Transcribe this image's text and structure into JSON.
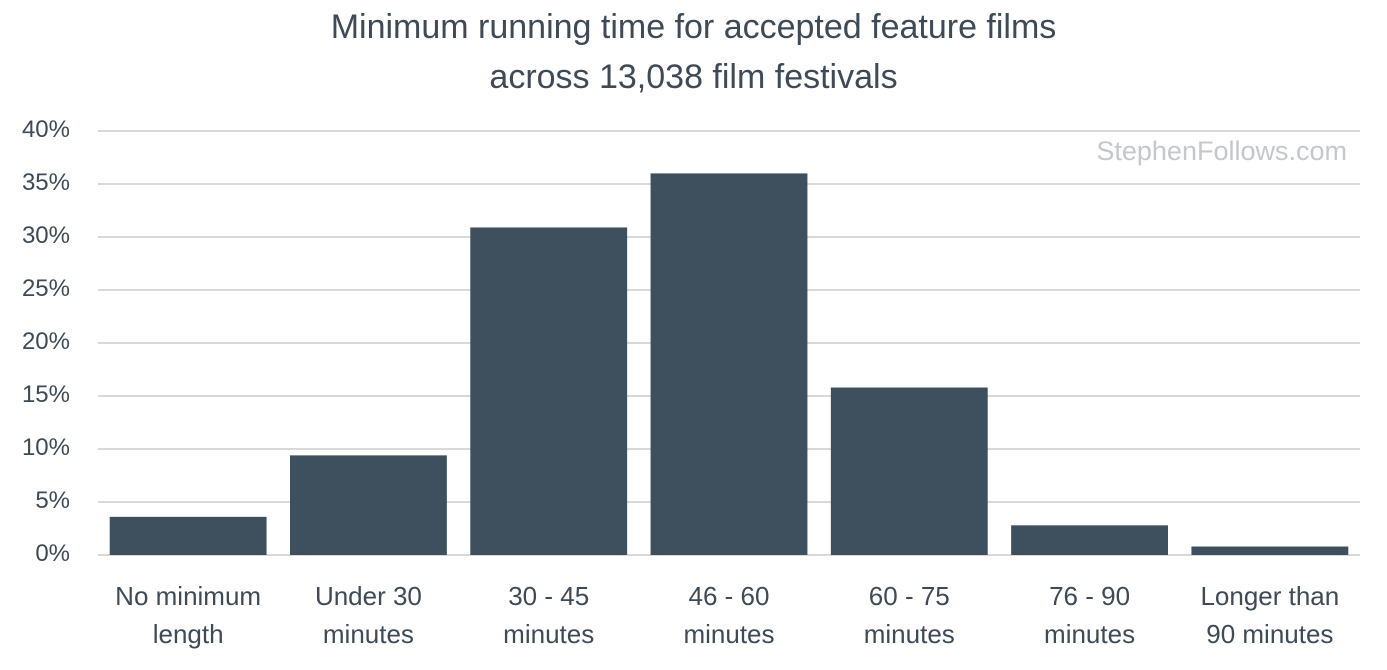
{
  "chart_data": {
    "type": "bar",
    "title": "Minimum running time for accepted feature films\nacross 13,038 film festivals",
    "annotation": "StephenFollows.com",
    "categories": [
      "No minimum\nlength",
      "Under 30\nminutes",
      "30 - 45\nminutes",
      "46 - 60\nminutes",
      "60 - 75\nminutes",
      "76 - 90\nminutes",
      "Longer than\n90 minutes"
    ],
    "values": [
      3.6,
      9.4,
      30.9,
      36.0,
      15.8,
      2.8,
      0.8
    ],
    "color": "#3e4f5e",
    "ylim": [
      0,
      40
    ],
    "yticks": [
      {
        "value": 0,
        "label": "0%"
      },
      {
        "value": 5,
        "label": "5%"
      },
      {
        "value": 10,
        "label": "10%"
      },
      {
        "value": 15,
        "label": "15%"
      },
      {
        "value": 20,
        "label": "20%"
      },
      {
        "value": 25,
        "label": "25%"
      },
      {
        "value": 30,
        "label": "30%"
      },
      {
        "value": 35,
        "label": "35%"
      },
      {
        "value": 40,
        "label": "40%"
      }
    ],
    "grid": true
  }
}
